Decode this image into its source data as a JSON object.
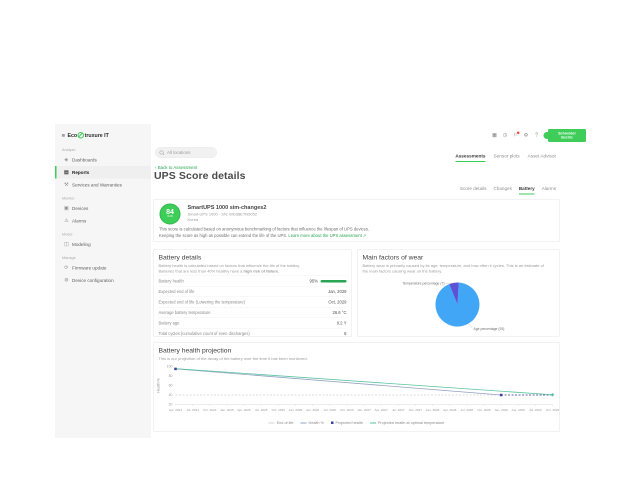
{
  "brand": {
    "pre": "Eco",
    "post": "truxure IT"
  },
  "sidebar": {
    "sections": [
      {
        "label": "Analyze",
        "items": [
          {
            "label": "Dashboards",
            "icon": "dashboards-icon",
            "active": false
          },
          {
            "label": "Reports",
            "icon": "reports-icon",
            "active": true
          },
          {
            "label": "Services and Warranties",
            "icon": "services-warranties-icon",
            "active": false
          }
        ]
      },
      {
        "label": "Monitor",
        "items": [
          {
            "label": "Devices",
            "icon": "devices-icon",
            "active": false
          },
          {
            "label": "Alarms",
            "icon": "alarms-icon",
            "active": false
          }
        ]
      },
      {
        "label": "Model",
        "items": [
          {
            "label": "Modeling",
            "icon": "modeling-icon",
            "active": false
          }
        ]
      },
      {
        "label": "Manage",
        "items": [
          {
            "label": "Firmware update",
            "icon": "firmware-update-icon",
            "active": false
          },
          {
            "label": "Device configuration",
            "icon": "device-configuration-icon",
            "active": false
          }
        ]
      }
    ]
  },
  "topbar": {
    "search_placeholder": "All locations",
    "icons": [
      {
        "name": "apps-icon",
        "badge": false
      },
      {
        "name": "history-icon",
        "badge": false
      },
      {
        "name": "notifications-icon",
        "badge": true
      },
      {
        "name": "settings-icon",
        "badge": false
      },
      {
        "name": "help-icon",
        "badge": false
      }
    ],
    "logo_line1": "Schneider",
    "logo_line2": "Electric"
  },
  "tabs_primary": [
    {
      "label": "Assessments",
      "active": true
    },
    {
      "label": "Sensor plots",
      "active": false
    },
    {
      "label": "Asset Advisor",
      "active": false
    }
  ],
  "page": {
    "back_chevron": "‹",
    "back_label": "Back to Assessment",
    "title": "UPS Score details"
  },
  "tabs_secondary": [
    {
      "label": "Score details",
      "active": false
    },
    {
      "label": "Changes",
      "active": false
    },
    {
      "label": "Battery",
      "active": true
    },
    {
      "label": "Alarms",
      "active": false
    }
  ],
  "score_card": {
    "score": "84",
    "score_total": "/100",
    "device_name": "SmartUPS 1000 sim-changes2",
    "device_meta": "Smart-UPS 1000 · SN: WD38ETN5052",
    "location": "Korea",
    "description_line1": "This score is calculated based on anonymous benchmarking of factors that influence the lifespan of UPS devices.",
    "description_line2": "Keeping the score as high as possible can extend the life of the UPS.",
    "learn_more": "Learn more about the UPS assessment ↗"
  },
  "battery_details": {
    "title": "Battery details",
    "description_line1": "Battery health is calculated based on factors that influence the life of the battery.",
    "description_line2_prefix": "Batteries that are less than 40% healthy have a ",
    "description_line2_bold": "high risk of failure.",
    "rows": [
      {
        "label": "Battery health",
        "value": "95%",
        "bar_pct": 95
      },
      {
        "label": "Expected end of life",
        "value": "Jan, 2029"
      },
      {
        "label": "Expected end of life (Lowering the temperature)",
        "value": "Oct, 2029"
      },
      {
        "label": "Average battery temperature",
        "value": "26.6 °C"
      },
      {
        "label": "Battery age",
        "value": "0.2 Y"
      },
      {
        "label": "Total cycles (cumulative count of even discharges)",
        "value": "6"
      }
    ]
  },
  "wear_card": {
    "title": "Main factors of wear",
    "description": "Battery wear is primarily caused by its age, temperature, and how often it cycles. This is an estimate of the main factors causing wear on the battery."
  },
  "projection_card": {
    "title": "Battery health projection",
    "subtitle": "This is our projection of the decay of the battery over the time it has been monitored."
  },
  "chart_data": [
    {
      "type": "pie",
      "title": "Main factors of wear",
      "labels": [
        "Age percentage",
        "Temperature percentage"
      ],
      "values": [
        93,
        7
      ],
      "label_texts": [
        "Age percentage (93)",
        "Temperature percentage (7)"
      ],
      "colors": [
        "#41a6f6",
        "#5b52d5"
      ]
    },
    {
      "type": "line",
      "title": "Battery health projection",
      "xlabel": "",
      "ylabel": "Health %",
      "ylim": [
        20,
        100
      ],
      "yticks": [
        20,
        40,
        60,
        80,
        100
      ],
      "grid": false,
      "legend_position": "bottom",
      "x_categories": [
        "Apr. 2024",
        "Jul. 2024",
        "Oct. 2024",
        "Jan. 2025",
        "Apr. 2025",
        "Jul. 2025",
        "Oct. 2025",
        "Jan. 2026",
        "Apr. 2026",
        "Jul. 2026",
        "Oct. 2026",
        "Jan. 2027",
        "Apr. 2027",
        "Jul. 2027",
        "Oct. 2027",
        "Jan. 2028",
        "Apr. 2028",
        "Jul. 2028",
        "Oct. 2028",
        "Jan. 2029",
        "Apr. 2029",
        "Jul. 2029",
        "Oct. 2029"
      ],
      "series": [
        {
          "name": "End of life",
          "style": "dashed",
          "color": "#d2d2d2",
          "legend_swatch": "line",
          "points": [
            [
              "Apr. 2024",
              40
            ],
            [
              "Oct. 2029",
              40
            ]
          ],
          "marker_points": []
        },
        {
          "name": "Health %",
          "style": "solid",
          "color": "#93a0c2",
          "legend_swatch": "line",
          "points": [
            [
              "Apr. 2024",
              95
            ],
            [
              "Jan. 2029",
              40
            ]
          ],
          "marker": "square",
          "marker_color": "#3b3f9e",
          "marker_points": [
            [
              "Apr. 2024",
              95
            ]
          ]
        },
        {
          "name": "Projected health",
          "style": "dashed",
          "color": "#3b3f9e",
          "legend_swatch": "square",
          "points": [
            [
              "Jan. 2029",
              40
            ],
            [
              "Oct. 2029",
              40
            ]
          ],
          "marker": "square",
          "marker_color": "#3b3f9e",
          "marker_points": [
            [
              "Jan. 2029",
              40
            ]
          ]
        },
        {
          "name": "Projected health at optimal temperature",
          "style": "solid",
          "color": "#57c49e",
          "legend_swatch": "line",
          "points": [
            [
              "Apr. 2024",
              95.5
            ],
            [
              "Oct. 2029",
              40.5
            ]
          ],
          "marker": "diamond",
          "marker_color": "#57c49e",
          "marker_points": [
            [
              "Oct. 2029",
              40.5
            ]
          ]
        }
      ]
    }
  ],
  "colors": {
    "accent_green": "#3dcd58",
    "link_green": "#27a551",
    "pie_blue": "#41a6f6",
    "pie_purple": "#5b52d5",
    "line_teal": "#57c49e",
    "line_grey": "#93a0c2",
    "line_navy": "#3b3f9e",
    "badge_red": "#e5493a"
  }
}
